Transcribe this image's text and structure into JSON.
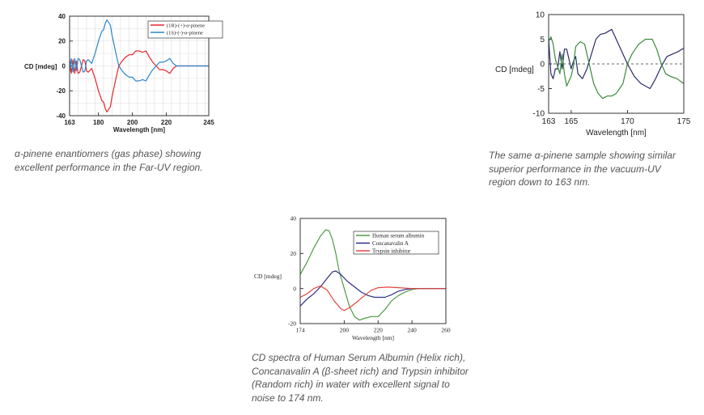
{
  "captions": [
    "α-pinene enantiomers (gas phase) showing excellent performance in the Far-UV region.",
    "The same α-pinene sample showing similar superior performance in the vacuum-UV region down to 163 nm.",
    "CD spectra of Human Serum Albumin (Helix rich), Concanavalin A (β-sheet rich) and Trypsin inhibitor (Random rich) in water with excellent signal to noise to 174 nm."
  ],
  "chart_data": [
    {
      "type": "line",
      "xlabel": "Wavelength [nm]",
      "ylabel": "CD [mdeg]",
      "xlim": [
        163,
        245
      ],
      "ylim": [
        -40,
        40
      ],
      "xticks": [
        163,
        180,
        200,
        220,
        245
      ],
      "yticks": [
        -40,
        -20,
        0,
        20,
        40
      ],
      "grid": true,
      "legend": "top-right",
      "series": [
        {
          "name": "(1R)-(+)-α-pinene",
          "color": "#e8262b",
          "points": [
            [
              163,
              5
            ],
            [
              164,
              -6
            ],
            [
              165,
              5
            ],
            [
              166,
              -6
            ],
            [
              167,
              4
            ],
            [
              168,
              -6
            ],
            [
              169,
              -5
            ],
            [
              170,
              0
            ],
            [
              171,
              5
            ],
            [
              172,
              4
            ],
            [
              173,
              -4
            ],
            [
              174,
              -5
            ],
            [
              176,
              -2
            ],
            [
              178,
              -10
            ],
            [
              180,
              -20
            ],
            [
              182,
              -28
            ],
            [
              183,
              -29
            ],
            [
              184,
              -34
            ],
            [
              185,
              -37
            ],
            [
              186,
              -35
            ],
            [
              187,
              -33
            ],
            [
              188,
              -25
            ],
            [
              190,
              -12
            ],
            [
              192,
              0
            ],
            [
              194,
              4
            ],
            [
              196,
              7
            ],
            [
              198,
              9
            ],
            [
              200,
              9
            ],
            [
              202,
              12
            ],
            [
              204,
              12
            ],
            [
              206,
              11
            ],
            [
              208,
              12
            ],
            [
              210,
              7
            ],
            [
              212,
              3
            ],
            [
              214,
              0
            ],
            [
              216,
              -3
            ],
            [
              218,
              -3
            ],
            [
              220,
              -4
            ],
            [
              222,
              -6
            ],
            [
              224,
              -2
            ],
            [
              226,
              0
            ],
            [
              245,
              0
            ]
          ]
        },
        {
          "name": "(1S)-(-)-α-pinene",
          "color": "#2a86cf",
          "points": [
            [
              163,
              -5
            ],
            [
              164,
              6
            ],
            [
              165,
              -5
            ],
            [
              166,
              6
            ],
            [
              167,
              -4
            ],
            [
              168,
              6
            ],
            [
              169,
              5
            ],
            [
              170,
              0
            ],
            [
              171,
              -5
            ],
            [
              172,
              -4
            ],
            [
              173,
              4
            ],
            [
              174,
              5
            ],
            [
              176,
              2
            ],
            [
              178,
              10
            ],
            [
              180,
              20
            ],
            [
              182,
              28
            ],
            [
              183,
              29
            ],
            [
              184,
              34
            ],
            [
              185,
              37
            ],
            [
              186,
              35
            ],
            [
              187,
              33
            ],
            [
              188,
              25
            ],
            [
              190,
              12
            ],
            [
              192,
              0
            ],
            [
              194,
              -4
            ],
            [
              196,
              -7
            ],
            [
              198,
              -9
            ],
            [
              200,
              -9
            ],
            [
              202,
              -12
            ],
            [
              204,
              -12
            ],
            [
              206,
              -11
            ],
            [
              208,
              -12
            ],
            [
              210,
              -7
            ],
            [
              212,
              -3
            ],
            [
              214,
              0
            ],
            [
              216,
              3
            ],
            [
              218,
              3
            ],
            [
              220,
              4
            ],
            [
              222,
              6
            ],
            [
              224,
              2
            ],
            [
              226,
              0
            ],
            [
              245,
              0
            ]
          ]
        }
      ]
    },
    {
      "type": "line",
      "xlabel": "Wavelength [nm]",
      "ylabel": "CD [mdeg]",
      "xlim": [
        163,
        175
      ],
      "ylim": [
        -10,
        10
      ],
      "xticks": [
        163,
        165,
        170,
        175
      ],
      "yticks": [
        -10,
        -5,
        0,
        5,
        10
      ],
      "grid": false,
      "zero_line": "dashed",
      "series": [
        {
          "color": "#2b2a6b",
          "points": [
            [
              163,
              5
            ],
            [
              163.2,
              -2
            ],
            [
              163.4,
              -3
            ],
            [
              163.6,
              -1
            ],
            [
              163.8,
              -1
            ],
            [
              164,
              2.5
            ],
            [
              164.2,
              -1
            ],
            [
              164.4,
              3
            ],
            [
              164.6,
              3
            ],
            [
              164.8,
              1
            ],
            [
              165,
              -1
            ],
            [
              165.2,
              0.5
            ],
            [
              165.4,
              1.5
            ],
            [
              165.6,
              -2
            ],
            [
              166,
              -3
            ],
            [
              166.4,
              -1
            ],
            [
              166.8,
              2
            ],
            [
              167.2,
              5
            ],
            [
              167.6,
              6
            ],
            [
              168,
              6.2
            ],
            [
              168.6,
              7
            ],
            [
              169,
              5
            ],
            [
              169.6,
              2
            ],
            [
              170,
              0
            ],
            [
              170.6,
              -2.5
            ],
            [
              171.2,
              -4
            ],
            [
              171.6,
              -4.5
            ],
            [
              172,
              -5
            ],
            [
              172.5,
              -3
            ],
            [
              173,
              -0.5
            ],
            [
              173.5,
              1.5
            ],
            [
              174,
              2
            ],
            [
              174.5,
              2.5
            ],
            [
              175,
              3.2
            ]
          ]
        },
        {
          "color": "#3a8a3a",
          "points": [
            [
              163,
              4.5
            ],
            [
              163.2,
              5.5
            ],
            [
              163.4,
              4
            ],
            [
              163.6,
              1
            ],
            [
              163.8,
              -0.5
            ],
            [
              164,
              -2
            ],
            [
              164.2,
              2
            ],
            [
              164.4,
              -2
            ],
            [
              164.6,
              -4.5
            ],
            [
              165,
              -2.5
            ],
            [
              165.2,
              -0.5
            ],
            [
              165.4,
              3.5
            ],
            [
              165.8,
              4.5
            ],
            [
              166.2,
              4
            ],
            [
              166.6,
              0
            ],
            [
              167,
              -4
            ],
            [
              167.4,
              -6
            ],
            [
              167.8,
              -7
            ],
            [
              168.2,
              -6.5
            ],
            [
              168.6,
              -6.5
            ],
            [
              169,
              -6
            ],
            [
              169.6,
              -4
            ],
            [
              170,
              0
            ],
            [
              170.4,
              2
            ],
            [
              171,
              4
            ],
            [
              171.6,
              5
            ],
            [
              172.2,
              5
            ],
            [
              172.6,
              3
            ],
            [
              173,
              0
            ],
            [
              173.4,
              -2
            ],
            [
              173.8,
              -2.5
            ],
            [
              174.4,
              -3
            ],
            [
              175,
              -4
            ]
          ]
        }
      ]
    },
    {
      "type": "line",
      "xlabel": "Wavelength [nm]",
      "ylabel": "CD [mdeg]",
      "xlim": [
        174,
        260
      ],
      "ylim": [
        -20,
        40
      ],
      "xticks": [
        174,
        200,
        220,
        240,
        260
      ],
      "yticks": [
        -20,
        0,
        20,
        40
      ],
      "grid": false,
      "legend": "top-right",
      "series": [
        {
          "name": "Human serum albumin",
          "color": "#4f9a45",
          "points": [
            [
              174,
              8
            ],
            [
              178,
              15
            ],
            [
              182,
              23
            ],
            [
              186,
              30
            ],
            [
              189,
              33.5
            ],
            [
              191,
              33
            ],
            [
              193,
              28
            ],
            [
              195,
              20
            ],
            [
              197,
              10
            ],
            [
              200,
              0
            ],
            [
              203,
              -10
            ],
            [
              206,
              -16
            ],
            [
              209,
              -18
            ],
            [
              212,
              -17
            ],
            [
              216,
              -16
            ],
            [
              220,
              -16
            ],
            [
              224,
              -12
            ],
            [
              228,
              -7
            ],
            [
              232,
              -4
            ],
            [
              236,
              -2
            ],
            [
              240,
              -0.5
            ],
            [
              244,
              0
            ],
            [
              260,
              0
            ]
          ]
        },
        {
          "name": "Concanavalin  A",
          "color": "#2f2f8a",
          "points": [
            [
              174,
              -10
            ],
            [
              178,
              -6
            ],
            [
              182,
              -3
            ],
            [
              186,
              1
            ],
            [
              190,
              6
            ],
            [
              193,
              9.5
            ],
            [
              195,
              10
            ],
            [
              198,
              8
            ],
            [
              202,
              4
            ],
            [
              206,
              1
            ],
            [
              210,
              -2
            ],
            [
              214,
              -4
            ],
            [
              218,
              -5
            ],
            [
              224,
              -5
            ],
            [
              228,
              -3.5
            ],
            [
              232,
              -1.5
            ],
            [
              236,
              -0.5
            ],
            [
              240,
              0
            ],
            [
              260,
              0
            ]
          ]
        },
        {
          "name": "Trypsin inhibitor",
          "color": "#e2463e",
          "points": [
            [
              174,
              -5
            ],
            [
              178,
              -3
            ],
            [
              182,
              0
            ],
            [
              186,
              1.5
            ],
            [
              190,
              -1
            ],
            [
              194,
              -7
            ],
            [
              198,
              -11.5
            ],
            [
              200,
              -12.5
            ],
            [
              203,
              -11
            ],
            [
              207,
              -8
            ],
            [
              212,
              -4
            ],
            [
              216,
              -1
            ],
            [
              220,
              0.5
            ],
            [
              226,
              0.8
            ],
            [
              232,
              0.5
            ],
            [
              240,
              0
            ],
            [
              260,
              0
            ]
          ]
        }
      ]
    }
  ]
}
